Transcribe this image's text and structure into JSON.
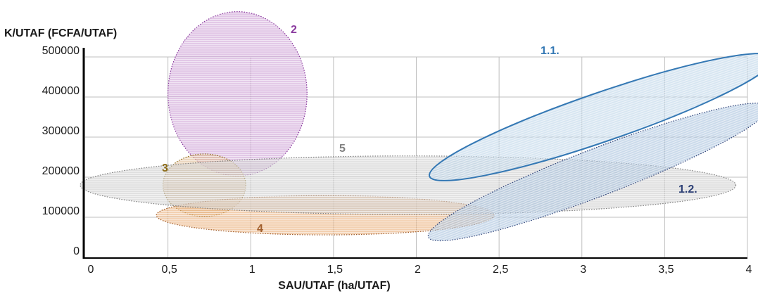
{
  "chart_data": {
    "type": "scatter",
    "title": "",
    "xlabel": "SAU/UTAF (ha/UTAF)",
    "ylabel": "K/UTAF (FCFA/UTAF)",
    "xlim": [
      0,
      4
    ],
    "ylim": [
      0,
      500000
    ],
    "x_ticks": [
      "0",
      "0,5",
      "1",
      "1,5",
      "2",
      "2,5",
      "3",
      "3,5",
      "4"
    ],
    "y_ticks": [
      "0",
      "100000",
      "200000",
      "300000",
      "400000",
      "500000"
    ],
    "grid": true,
    "clusters": [
      {
        "label": "2",
        "color": "#8a3a9e",
        "fill": "#c995d2",
        "outline": "dotted",
        "center_x": 0.92,
        "center_y": 408000,
        "half_width_x": 0.42,
        "half_height_y": 205000,
        "rotation_deg": 0
      },
      {
        "label": "3",
        "color": "#8b6a16",
        "fill": "#d9b083",
        "outline": "dotted",
        "center_x": 0.72,
        "center_y": 180000,
        "half_width_x": 0.25,
        "half_height_y": 78000,
        "rotation_deg": 0
      },
      {
        "label": "4",
        "color": "#a15e2c",
        "fill": "#e8a86e",
        "outline": "dotted",
        "center_x": 1.45,
        "center_y": 105000,
        "half_width_x": 1.02,
        "half_height_y": 49000,
        "rotation_deg": 0
      },
      {
        "label": "5",
        "color": "#808080",
        "fill": "#c6c6c6",
        "outline": "dotted",
        "center_x": 1.95,
        "center_y": 180000,
        "half_width_x": 1.98,
        "half_height_y": 73000,
        "rotation_deg": 0
      },
      {
        "label": "1.2.",
        "color": "#2c3f75",
        "fill": "#9dbad8",
        "outline": "dotted",
        "center_x": 3.1,
        "center_y": 213000,
        "half_width_x": 1.1,
        "half_height_y": 59000,
        "rotation_deg": -21
      },
      {
        "label": "1.1.",
        "color": "#3478b4",
        "fill": "#b5d0e6",
        "outline": "solid",
        "center_x": 3.12,
        "center_y": 350000,
        "half_width_x": 1.1,
        "half_height_y": 61000,
        "rotation_deg": -19
      }
    ]
  }
}
